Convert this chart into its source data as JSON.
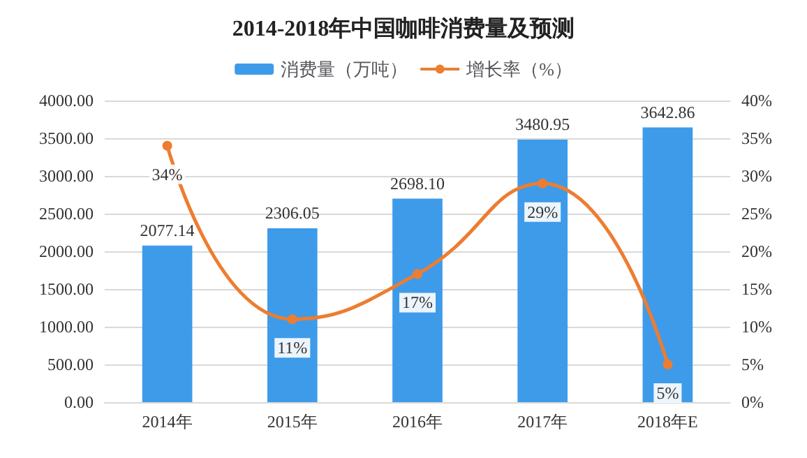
{
  "chart_data": {
    "type": "bar",
    "title": "2014-2018年中国咖啡消费量及预测",
    "categories": [
      "2014年",
      "2015年",
      "2016年",
      "2017年",
      "2018年E"
    ],
    "series": [
      {
        "name": "消费量（万吨）",
        "color": "#3e9bea",
        "values": [
          2077.14,
          2306.05,
          2698.1,
          3480.95,
          3642.86
        ],
        "value_labels": [
          "2077.14",
          "2306.05",
          "2698.10",
          "3480.95",
          "3642.86"
        ]
      },
      {
        "name": "增长率（%）",
        "type": "line",
        "axis": "y2",
        "color": "#ed7d31",
        "marker": "circle",
        "values": [
          34,
          11,
          17,
          29,
          5
        ],
        "value_labels": [
          "34%",
          "11%",
          "17%",
          "29%",
          "5%"
        ]
      }
    ],
    "ylim": [
      0,
      4000
    ],
    "yticks": [
      {
        "value": 0,
        "label": "0.00"
      },
      {
        "value": 500,
        "label": "500.00"
      },
      {
        "value": 1000,
        "label": "1000.00"
      },
      {
        "value": 1500,
        "label": "1500.00"
      },
      {
        "value": 2000,
        "label": "2000.00"
      },
      {
        "value": 2500,
        "label": "2500.00"
      },
      {
        "value": 3000,
        "label": "3000.00"
      },
      {
        "value": 3500,
        "label": "3500.00"
      },
      {
        "value": 4000,
        "label": "4000.00"
      }
    ],
    "y2lim": [
      0,
      40
    ],
    "y2ticks": [
      {
        "value": 0,
        "label": "0%"
      },
      {
        "value": 5,
        "label": "5%"
      },
      {
        "value": 10,
        "label": "10%"
      },
      {
        "value": 15,
        "label": "15%"
      },
      {
        "value": 20,
        "label": "20%"
      },
      {
        "value": 25,
        "label": "25%"
      },
      {
        "value": 30,
        "label": "30%"
      },
      {
        "value": 35,
        "label": "35%"
      },
      {
        "value": 40,
        "label": "40%"
      }
    ],
    "grid": "y",
    "legend": "top"
  }
}
